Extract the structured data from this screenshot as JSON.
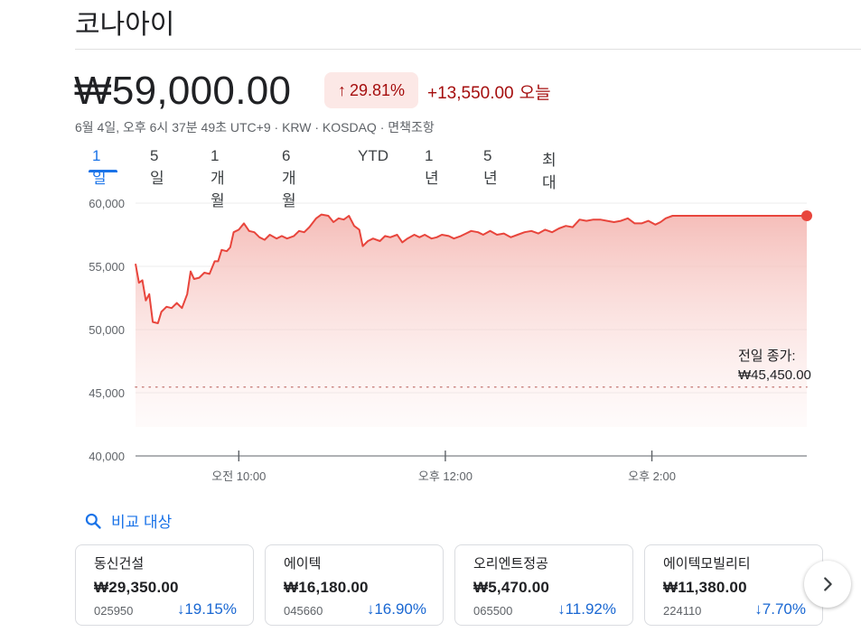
{
  "stock": {
    "name": "코나아이",
    "price": "₩59,000.00",
    "change_pct": "29.81%",
    "change_abs": "+13,550.00",
    "change_period": "오늘",
    "meta": "6월 4일, 오후 6시 37분 49초 UTC+9 · KRW · KOSDAQ · 면책조항"
  },
  "tabs": [
    {
      "label": "1일",
      "active": true
    },
    {
      "label": "5일"
    },
    {
      "label": "1개월"
    },
    {
      "label": "6개월"
    },
    {
      "label": "YTD"
    },
    {
      "label": "1년"
    },
    {
      "label": "5년"
    },
    {
      "label": "최대"
    }
  ],
  "chart_data": {
    "type": "area",
    "ylim": [
      40000,
      60000
    ],
    "y_ticks": [
      {
        "value": 60000,
        "label": "60,000"
      },
      {
        "value": 55000,
        "label": "55,000"
      },
      {
        "value": 50000,
        "label": "50,000"
      },
      {
        "value": 45000,
        "label": "45,000"
      },
      {
        "value": 40000,
        "label": "40,000"
      }
    ],
    "x_ticks": [
      {
        "time": "10:00",
        "label": "오전 10:00"
      },
      {
        "time": "12:00",
        "label": "오후 12:00"
      },
      {
        "time": "14:00",
        "label": "오후 2:00"
      }
    ],
    "xlim": [
      "09:00",
      "15:30"
    ],
    "prev_close": 45450,
    "prev_close_label": "전일 종가:",
    "prev_close_value": "₩45,450.00",
    "colors": {
      "line": "#e8453c",
      "area": "#f4b6b1",
      "dot": "#e8453c"
    },
    "series": [
      {
        "points": [
          [
            "09:00",
            55200
          ],
          [
            "09:02",
            53700
          ],
          [
            "09:04",
            53900
          ],
          [
            "09:06",
            52300
          ],
          [
            "09:08",
            52800
          ],
          [
            "09:10",
            50600
          ],
          [
            "09:13",
            50500
          ],
          [
            "09:15",
            51400
          ],
          [
            "09:18",
            51800
          ],
          [
            "09:21",
            51700
          ],
          [
            "09:24",
            52100
          ],
          [
            "09:27",
            51700
          ],
          [
            "09:30",
            52800
          ],
          [
            "09:32",
            54600
          ],
          [
            "09:34",
            54000
          ],
          [
            "09:37",
            54100
          ],
          [
            "09:40",
            54500
          ],
          [
            "09:43",
            54400
          ],
          [
            "09:46",
            55400
          ],
          [
            "09:48",
            55400
          ],
          [
            "09:50",
            56300
          ],
          [
            "09:53",
            56200
          ],
          [
            "09:55",
            56500
          ],
          [
            "09:57",
            57700
          ],
          [
            "10:00",
            57900
          ],
          [
            "10:03",
            58400
          ],
          [
            "10:06",
            57800
          ],
          [
            "10:09",
            57700
          ],
          [
            "10:12",
            57300
          ],
          [
            "10:15",
            57100
          ],
          [
            "10:18",
            57500
          ],
          [
            "10:22",
            57200
          ],
          [
            "10:25",
            57400
          ],
          [
            "10:28",
            57200
          ],
          [
            "10:32",
            57400
          ],
          [
            "10:35",
            57800
          ],
          [
            "10:38",
            57700
          ],
          [
            "10:41",
            58100
          ],
          [
            "10:45",
            58800
          ],
          [
            "10:48",
            59100
          ],
          [
            "10:52",
            59000
          ],
          [
            "10:55",
            58500
          ],
          [
            "10:58",
            58800
          ],
          [
            "11:01",
            58700
          ],
          [
            "11:04",
            59000
          ],
          [
            "11:07",
            58200
          ],
          [
            "11:10",
            57900
          ],
          [
            "11:12",
            56600
          ],
          [
            "11:15",
            57000
          ],
          [
            "11:18",
            57200
          ],
          [
            "11:22",
            57000
          ],
          [
            "11:25",
            57400
          ],
          [
            "11:28",
            57300
          ],
          [
            "11:32",
            57500
          ],
          [
            "11:35",
            56900
          ],
          [
            "11:38",
            57200
          ],
          [
            "11:42",
            57500
          ],
          [
            "11:45",
            57300
          ],
          [
            "11:48",
            57500
          ],
          [
            "11:52",
            57200
          ],
          [
            "11:55",
            57300
          ],
          [
            "11:58",
            57500
          ],
          [
            "12:02",
            57400
          ],
          [
            "12:05",
            57200
          ],
          [
            "12:09",
            57400
          ],
          [
            "12:12",
            57600
          ],
          [
            "12:15",
            57800
          ],
          [
            "12:19",
            57700
          ],
          [
            "12:22",
            57500
          ],
          [
            "12:26",
            57800
          ],
          [
            "12:30",
            57500
          ],
          [
            "12:34",
            57600
          ],
          [
            "12:38",
            57300
          ],
          [
            "12:42",
            57500
          ],
          [
            "12:46",
            57700
          ],
          [
            "12:50",
            57800
          ],
          [
            "12:54",
            57600
          ],
          [
            "12:58",
            57900
          ],
          [
            "13:02",
            57700
          ],
          [
            "13:06",
            58000
          ],
          [
            "13:10",
            58200
          ],
          [
            "13:14",
            58100
          ],
          [
            "13:18",
            58700
          ],
          [
            "13:22",
            58600
          ],
          [
            "13:26",
            58700
          ],
          [
            "13:30",
            58700
          ],
          [
            "13:34",
            58600
          ],
          [
            "13:38",
            58500
          ],
          [
            "13:42",
            58600
          ],
          [
            "13:46",
            58800
          ],
          [
            "13:50",
            58400
          ],
          [
            "13:54",
            58400
          ],
          [
            "13:58",
            58600
          ],
          [
            "14:02",
            58300
          ],
          [
            "14:05",
            58500
          ],
          [
            "14:08",
            58800
          ],
          [
            "14:12",
            59000
          ],
          [
            "14:20",
            59000
          ],
          [
            "14:40",
            59000
          ],
          [
            "15:00",
            59000
          ],
          [
            "15:20",
            59000
          ],
          [
            "15:30",
            59000
          ]
        ]
      }
    ]
  },
  "compare": {
    "label": "비교 대상",
    "icon": "search-icon",
    "cards": [
      {
        "name": "동신건설",
        "price": "₩29,350.00",
        "code": "025950",
        "change": "19.15%"
      },
      {
        "name": "에이텍",
        "price": "₩16,180.00",
        "code": "045660",
        "change": "16.90%"
      },
      {
        "name": "오리엔트정공",
        "price": "₩5,470.00",
        "code": "065500",
        "change": "11.92%"
      },
      {
        "name": "에이텍모빌리티",
        "price": "₩11,380.00",
        "code": "224110",
        "change": "7.70%"
      }
    ],
    "next_icon": "chevron-right-icon"
  }
}
